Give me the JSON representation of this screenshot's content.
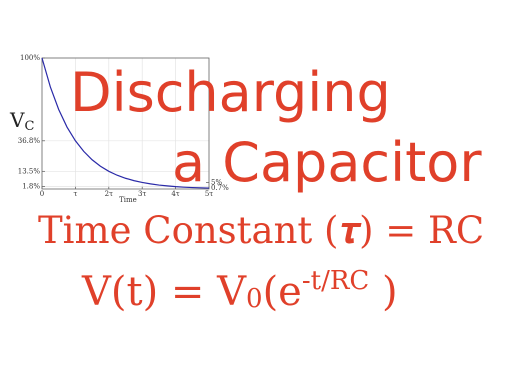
{
  "chart_data": {
    "type": "line",
    "x": [
      0,
      0.25,
      0.5,
      0.75,
      1,
      1.25,
      1.5,
      1.75,
      2,
      2.25,
      2.5,
      2.75,
      3,
      3.25,
      3.5,
      3.75,
      4,
      4.25,
      4.5,
      4.75,
      5
    ],
    "series": [
      {
        "color": "#2a2aa8",
        "values": [
          100,
          77.9,
          60.7,
          47.2,
          36.8,
          28.7,
          22.3,
          17.4,
          13.5,
          10.5,
          8.2,
          6.4,
          5.0,
          3.9,
          3.0,
          2.4,
          1.8,
          1.4,
          1.1,
          0.9,
          0.7
        ]
      }
    ],
    "xlim": [
      0,
      5
    ],
    "xticks": [
      0,
      {
        "value": 1,
        "label": "τ"
      },
      {
        "value": 2,
        "label": "2τ"
      },
      {
        "value": 3,
        "label": "3τ"
      },
      {
        "value": 4,
        "label": "4τ"
      },
      {
        "value": 5,
        "label": "5τ"
      }
    ],
    "ylim": [
      0,
      100
    ],
    "yticks": [
      {
        "value": 100,
        "label": "100%"
      },
      {
        "value": 36.8,
        "label": "36.8%"
      },
      {
        "value": 13.5,
        "label": "13.5%"
      },
      {
        "value": 1.8,
        "label": "1.8%"
      }
    ],
    "yticks_right": [
      {
        "value": 5,
        "label": "5%"
      },
      {
        "value": 0.7,
        "label": "0.7%"
      }
    ],
    "xlabel": "Time",
    "ylabel": "V",
    "ylabel_sub": "C",
    "grid": true
  },
  "headline": [
    "Discharging",
    "a Capacitor"
  ],
  "time_constant": "Time Constant (𝝉) = RC",
  "formula": {
    "lhs": "V(t) = V",
    "sub": "0",
    "open": "(e",
    "exponent": "-t/RC",
    "close": " )"
  }
}
